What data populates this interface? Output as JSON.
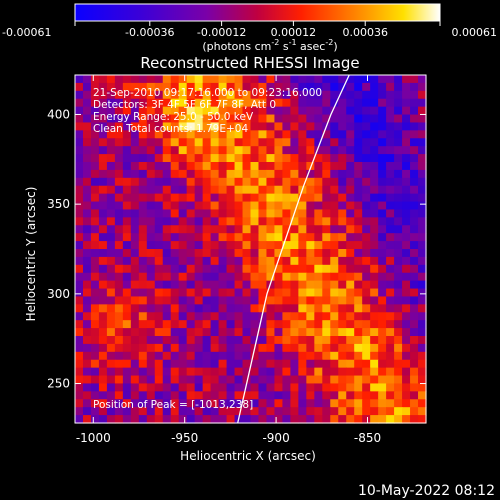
{
  "chart_data": {
    "type": "heatmap",
    "title": "Reconstructed RHESSI Image",
    "xlabel": "Heliocentric X (arcsec)",
    "ylabel": "Heliocentric Y (arcsec)",
    "xlim": [
      -1010,
      -818
    ],
    "ylim": [
      228,
      422
    ],
    "x_ticks": [
      "-1000",
      "-950",
      "-900",
      "-850"
    ],
    "x_tick_values": [
      -1000,
      -950,
      -900,
      -850
    ],
    "y_ticks": [
      "250",
      "300",
      "350",
      "400"
    ],
    "y_tick_values": [
      250,
      300,
      350,
      400
    ],
    "colorbar": {
      "label_prefix": "(photons cm",
      "label_exp1": "-2",
      "label_mid": " s",
      "label_exp2": "-1",
      "label_mid2": " asec",
      "label_exp3": "-2",
      "label_suffix": ")",
      "ticks": [
        "-0.00061",
        "-0.00036",
        "-0.00012",
        "0.00012",
        "0.00036",
        "0.00061"
      ],
      "range": [
        -0.00061,
        0.00061
      ]
    },
    "annotations": {
      "time_range": "21-Sep-2010 09:17:16.000 to 09:23:16.000",
      "detectors": "Detectors: 3F 4F 5F 6F 7F 8F, Att 0",
      "energy_range": "Energy Range: 25.0 - 50.0 keV",
      "clean_info": "Clean     Total counts: 1.79E+04",
      "peak_position": "Position of Peak = [-1013,238]"
    },
    "limb_curve": [
      [
        -921,
        228
      ],
      [
        -905,
        300
      ],
      [
        -885,
        360
      ],
      [
        -870,
        400
      ],
      [
        -860,
        422
      ]
    ],
    "colors": {
      "background": "#000000",
      "colormap": [
        "#0000ff",
        "#ff0000",
        "#ffff00",
        "#ffffff"
      ]
    }
  },
  "footer": {
    "date_stamp": "10-May-2022 08:12"
  }
}
